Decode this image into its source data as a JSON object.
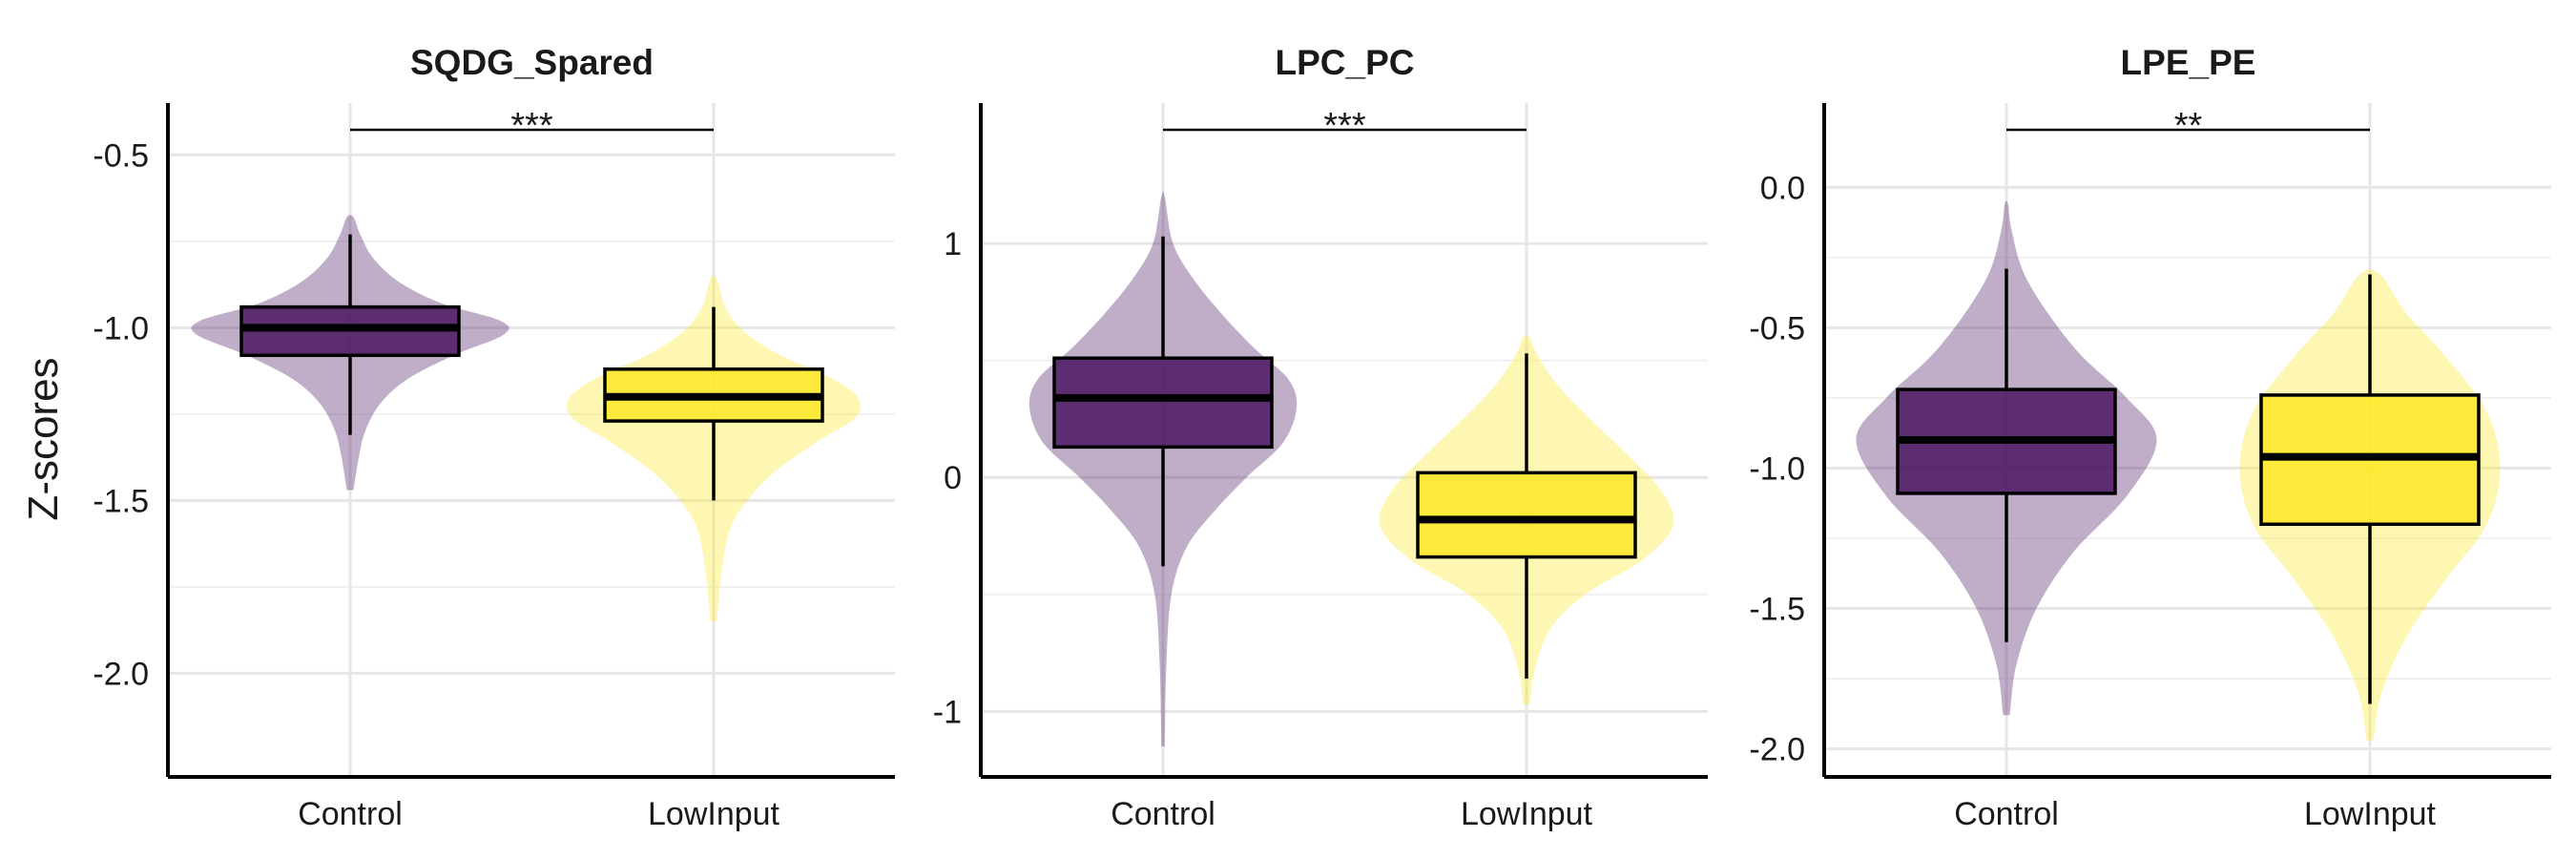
{
  "chart_data": [
    {
      "type": "violin+box",
      "title": "SQDG_Spared",
      "ylabel": "Z-scores",
      "ylim": [
        -2.3,
        -0.35
      ],
      "yticks": [
        -0.5,
        -1.0,
        -1.5,
        -2.0
      ],
      "ytick_labels": [
        "-0.5",
        "-1.0",
        "-1.5",
        "-2.0"
      ],
      "categories": [
        "Control",
        "LowInput"
      ],
      "significance": "***",
      "groups": [
        {
          "name": "Control",
          "color": "#4a1660",
          "whisker_low": -1.31,
          "q1": -1.08,
          "median": -1.0,
          "q3": -0.94,
          "whisker_high": -0.73,
          "violin_y": [
            -1.47,
            -1.38,
            -1.3,
            -1.22,
            -1.15,
            -1.08,
            -1.02,
            -0.98,
            -0.93,
            -0.87,
            -0.8,
            -0.73,
            -0.68
          ],
          "violin_halfwidth": [
            0.02,
            0.05,
            0.09,
            0.18,
            0.34,
            0.62,
            0.92,
            0.9,
            0.55,
            0.3,
            0.14,
            0.06,
            0.02
          ]
        },
        {
          "name": "LowInput",
          "color": "#fde725",
          "whisker_low": -1.5,
          "q1": -1.27,
          "median": -1.2,
          "q3": -1.12,
          "whisker_high": -0.94,
          "violin_y": [
            -1.85,
            -1.7,
            -1.58,
            -1.5,
            -1.42,
            -1.33,
            -1.26,
            -1.2,
            -1.14,
            -1.08,
            -1.01,
            -0.94,
            -0.86
          ],
          "violin_halfwidth": [
            0.02,
            0.05,
            0.1,
            0.2,
            0.36,
            0.62,
            0.85,
            0.86,
            0.68,
            0.4,
            0.18,
            0.07,
            0.02
          ]
        }
      ]
    },
    {
      "type": "violin+box",
      "title": "LPC_PC",
      "ylabel": "",
      "ylim": [
        -1.28,
        1.6
      ],
      "yticks": [
        1,
        0,
        -1
      ],
      "ytick_labels": [
        "1",
        "0",
        "-1"
      ],
      "categories": [
        "Control",
        "LowInput"
      ],
      "significance": "***",
      "groups": [
        {
          "name": "Control",
          "color": "#4a1660",
          "whisker_low": -0.38,
          "q1": 0.13,
          "median": 0.34,
          "q3": 0.51,
          "whisker_high": 1.03,
          "violin_y": [
            -1.15,
            -0.8,
            -0.5,
            -0.3,
            -0.15,
            0.0,
            0.15,
            0.3,
            0.42,
            0.55,
            0.7,
            0.85,
            1.0,
            1.2
          ],
          "violin_halfwidth": [
            0.01,
            0.02,
            0.05,
            0.14,
            0.3,
            0.5,
            0.72,
            0.8,
            0.75,
            0.55,
            0.35,
            0.18,
            0.06,
            0.01
          ]
        },
        {
          "name": "LowInput",
          "color": "#fde725",
          "whisker_low": -0.86,
          "q1": -0.34,
          "median": -0.18,
          "q3": 0.02,
          "whisker_high": 0.53,
          "violin_y": [
            -0.97,
            -0.82,
            -0.65,
            -0.5,
            -0.35,
            -0.2,
            -0.05,
            0.1,
            0.25,
            0.4,
            0.53,
            0.6
          ],
          "violin_halfwidth": [
            0.02,
            0.05,
            0.14,
            0.35,
            0.7,
            0.88,
            0.8,
            0.6,
            0.38,
            0.18,
            0.06,
            0.02
          ]
        }
      ]
    },
    {
      "type": "violin+box",
      "title": "LPE_PE",
      "ylabel": "",
      "ylim": [
        -2.1,
        0.3
      ],
      "yticks": [
        0.0,
        -0.5,
        -1.0,
        -1.5,
        -2.0
      ],
      "ytick_labels": [
        "0.0",
        "-0.5",
        "-1.0",
        "-1.5",
        "-2.0"
      ],
      "categories": [
        "Control",
        "LowInput"
      ],
      "significance": "**",
      "groups": [
        {
          "name": "Control",
          "color": "#4a1660",
          "whisker_low": -1.62,
          "q1": -1.09,
          "median": -0.9,
          "q3": -0.72,
          "whisker_high": -0.29,
          "violin_y": [
            -1.88,
            -1.7,
            -1.5,
            -1.3,
            -1.1,
            -0.9,
            -0.75,
            -0.6,
            -0.45,
            -0.3,
            -0.15,
            -0.06
          ],
          "violin_halfwidth": [
            0.02,
            0.06,
            0.18,
            0.4,
            0.72,
            0.9,
            0.72,
            0.45,
            0.25,
            0.1,
            0.03,
            0.01
          ]
        },
        {
          "name": "LowInput",
          "color": "#fde725",
          "whisker_low": -1.84,
          "q1": -1.2,
          "median": -0.96,
          "q3": -0.74,
          "whisker_high": -0.31,
          "violin_y": [
            -1.97,
            -1.8,
            -1.6,
            -1.4,
            -1.2,
            -1.0,
            -0.8,
            -0.6,
            -0.45,
            -0.31
          ],
          "violin_halfwidth": [
            0.02,
            0.07,
            0.22,
            0.45,
            0.7,
            0.78,
            0.7,
            0.45,
            0.22,
            0.06
          ]
        }
      ]
    }
  ]
}
